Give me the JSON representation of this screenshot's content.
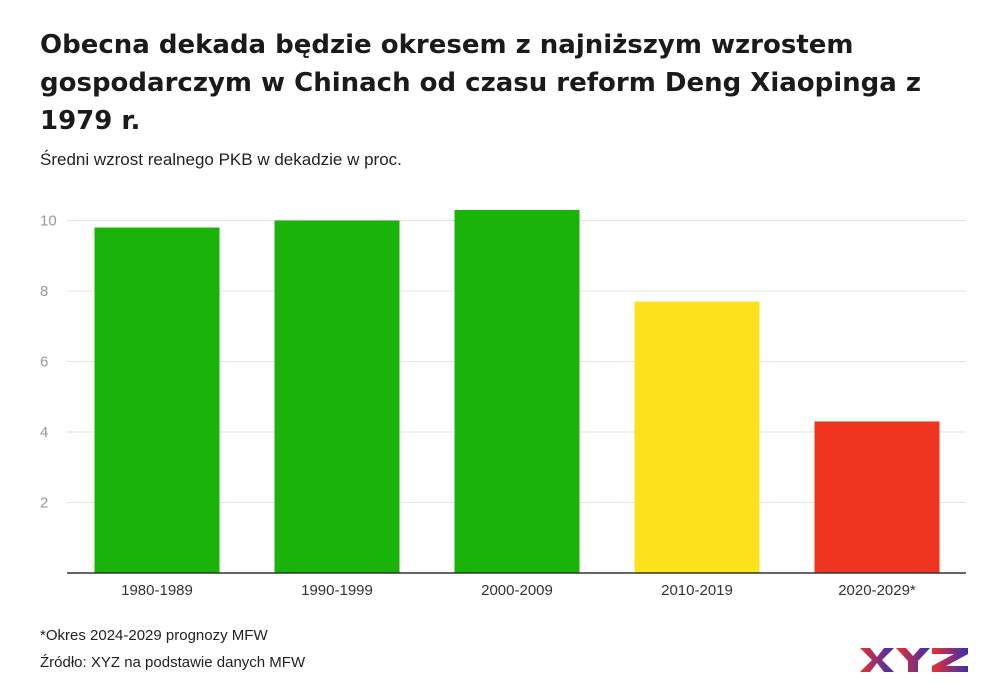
{
  "header": {
    "title": "Obecna dekada będzie okresem z najniższym wzrostem gospodarczym w Chinach od czasu reform Deng Xiaopinga z 1979 r.",
    "subtitle": "Średni wzrost realnego PKB w dekadzie w proc."
  },
  "footer": {
    "footnote": "*Okres 2024-2029 prognozy MFW",
    "source": "Źródło: XYZ na podstawie danych MFW"
  },
  "logo": {
    "text": "XYZ",
    "colors": [
      "#e8322c",
      "#3b2db5"
    ]
  },
  "chart_data": {
    "type": "bar",
    "categories": [
      "1980-1989",
      "1990-1999",
      "2000-2009",
      "2010-2019",
      "2020-2029*"
    ],
    "values": [
      9.8,
      10.0,
      10.3,
      7.7,
      4.3
    ],
    "colors": [
      "#19b30a",
      "#19b30a",
      "#19b30a",
      "#fde11d",
      "#ef3520"
    ],
    "ylim": [
      0,
      10.4
    ],
    "yticks": [
      2,
      4,
      6,
      8,
      10
    ],
    "grid": true,
    "xlabel": "",
    "ylabel": ""
  }
}
